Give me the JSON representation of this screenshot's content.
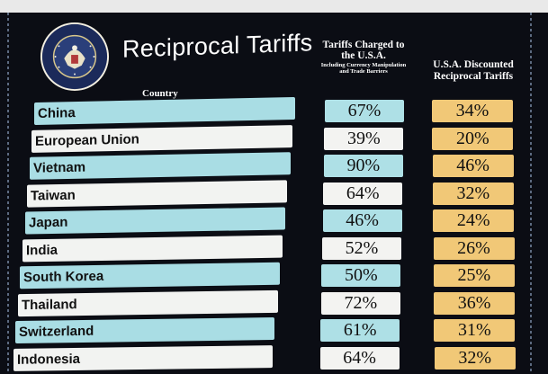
{
  "title": "Reciprocal Tariffs",
  "seal_text": "SEAL OF THE PRESIDENT OF THE UNITED STATES",
  "headers": {
    "country": "Country",
    "charged_main": "Tariffs Charged to the U.S.A.",
    "charged_sub": "Including Currency Manipulation and Trade Barriers",
    "discount": "U.S.A. Discounted Reciprocal Tariffs"
  },
  "colors": {
    "board": "#0b0d14",
    "row_blue": "#a9dde4",
    "row_white": "#f2f3f1",
    "gold": "#f1c877"
  },
  "rows": [
    {
      "country": "China",
      "charged": "67%",
      "discounted": "34%"
    },
    {
      "country": "European Union",
      "charged": "39%",
      "discounted": "20%"
    },
    {
      "country": "Vietnam",
      "charged": "90%",
      "discounted": "46%"
    },
    {
      "country": "Taiwan",
      "charged": "64%",
      "discounted": "32%"
    },
    {
      "country": "Japan",
      "charged": "46%",
      "discounted": "24%"
    },
    {
      "country": "India",
      "charged": "52%",
      "discounted": "26%"
    },
    {
      "country": "South Korea",
      "charged": "50%",
      "discounted": "25%"
    },
    {
      "country": "Thailand",
      "charged": "72%",
      "discounted": "36%"
    },
    {
      "country": "Switzerland",
      "charged": "61%",
      "discounted": "31%"
    },
    {
      "country": "Indonesia",
      "charged": "64%",
      "discounted": "32%"
    }
  ]
}
